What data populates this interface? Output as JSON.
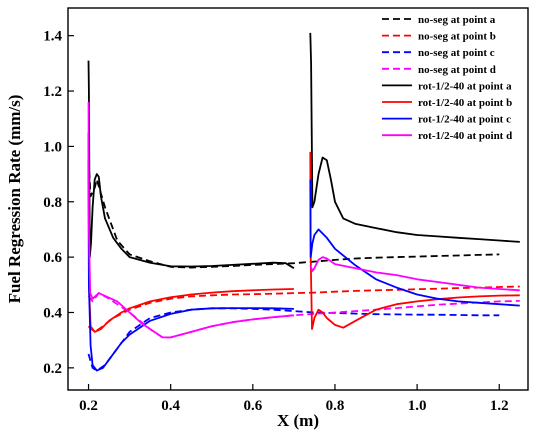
{
  "chart_data": {
    "type": "line",
    "xlabel": "X (m)",
    "ylabel": "Fuel Regression Rate (mm/s)",
    "xlim": [
      0.15,
      1.27
    ],
    "ylim": [
      0.12,
      1.5
    ],
    "xticks": [
      0.2,
      0.4,
      0.6,
      0.8,
      1.0,
      1.2
    ],
    "xtick_labels": [
      "0.2",
      "0.4",
      "0.6",
      "0.8",
      "1.0",
      "1.2"
    ],
    "yticks": [
      0.2,
      0.4,
      0.6,
      0.8,
      1.0,
      1.2,
      1.4
    ],
    "ytick_labels": [
      "0.2",
      "0.4",
      "0.6",
      "0.8",
      "1.0",
      "1.2",
      "1.4"
    ],
    "grid": false,
    "legend_position": "top-right",
    "series": [
      {
        "name": "no-seg at point a",
        "color": "#000000",
        "dash": "dashed",
        "segments": [
          [
            [
              0.2,
              0.95
            ],
            [
              0.205,
              0.82
            ],
            [
              0.215,
              0.85
            ],
            [
              0.22,
              0.88
            ],
            [
              0.24,
              0.78
            ],
            [
              0.27,
              0.66
            ],
            [
              0.3,
              0.61
            ],
            [
              0.35,
              0.585
            ],
            [
              0.4,
              0.565
            ],
            [
              0.45,
              0.562
            ],
            [
              0.5,
              0.565
            ],
            [
              0.55,
              0.568
            ],
            [
              0.6,
              0.572
            ],
            [
              0.65,
              0.575
            ],
            [
              0.7,
              0.578
            ],
            [
              0.75,
              0.584
            ],
            [
              0.8,
              0.59
            ],
            [
              0.85,
              0.595
            ],
            [
              0.9,
              0.598
            ],
            [
              0.95,
              0.6
            ],
            [
              1.0,
              0.602
            ],
            [
              1.05,
              0.604
            ],
            [
              1.1,
              0.606
            ],
            [
              1.15,
              0.608
            ],
            [
              1.2,
              0.61
            ]
          ]
        ]
      },
      {
        "name": "no-seg at point b",
        "color": "#ff0000",
        "dash": "dashed",
        "segments": [
          [
            [
              0.2,
              0.35
            ],
            [
              0.215,
              0.33
            ],
            [
              0.23,
              0.345
            ],
            [
              0.26,
              0.38
            ],
            [
              0.3,
              0.41
            ],
            [
              0.35,
              0.435
            ],
            [
              0.4,
              0.45
            ],
            [
              0.45,
              0.458
            ],
            [
              0.5,
              0.462
            ],
            [
              0.55,
              0.465
            ],
            [
              0.6,
              0.466
            ],
            [
              0.65,
              0.468
            ],
            [
              0.7,
              0.47
            ],
            [
              0.75,
              0.472
            ],
            [
              0.8,
              0.475
            ],
            [
              0.85,
              0.478
            ],
            [
              0.9,
              0.48
            ],
            [
              0.95,
              0.482
            ],
            [
              1.0,
              0.484
            ],
            [
              1.05,
              0.486
            ],
            [
              1.1,
              0.488
            ],
            [
              1.15,
              0.49
            ],
            [
              1.2,
              0.492
            ],
            [
              1.25,
              0.494
            ]
          ]
        ]
      },
      {
        "name": "no-seg at point c",
        "color": "#0000ff",
        "dash": "dashed",
        "segments": [
          [
            [
              0.2,
              0.25
            ],
            [
              0.21,
              0.2
            ],
            [
              0.22,
              0.19
            ],
            [
              0.24,
              0.21
            ],
            [
              0.27,
              0.27
            ],
            [
              0.3,
              0.33
            ],
            [
              0.35,
              0.38
            ],
            [
              0.4,
              0.4
            ],
            [
              0.45,
              0.41
            ],
            [
              0.5,
              0.415
            ],
            [
              0.55,
              0.415
            ],
            [
              0.6,
              0.413
            ],
            [
              0.65,
              0.41
            ],
            [
              0.7,
              0.405
            ],
            [
              0.75,
              0.4
            ],
            [
              0.8,
              0.398
            ],
            [
              0.85,
              0.396
            ],
            [
              0.9,
              0.394
            ],
            [
              0.95,
              0.393
            ],
            [
              1.0,
              0.392
            ],
            [
              1.05,
              0.392
            ],
            [
              1.1,
              0.391
            ],
            [
              1.15,
              0.39
            ],
            [
              1.2,
              0.39
            ]
          ]
        ]
      },
      {
        "name": "no-seg at point d",
        "color": "#ff00ff",
        "dash": "dashed",
        "segments": [
          [
            [
              0.2,
              0.46
            ],
            [
              0.21,
              0.44
            ],
            [
              0.225,
              0.47
            ],
            [
              0.25,
              0.45
            ],
            [
              0.3,
              0.4
            ],
            [
              0.35,
              0.34
            ],
            [
              0.38,
              0.31
            ],
            [
              0.4,
              0.31
            ],
            [
              0.45,
              0.33
            ],
            [
              0.5,
              0.35
            ],
            [
              0.55,
              0.365
            ],
            [
              0.6,
              0.375
            ],
            [
              0.65,
              0.383
            ],
            [
              0.7,
              0.39
            ],
            [
              0.75,
              0.395
            ],
            [
              0.8,
              0.4
            ],
            [
              0.85,
              0.405
            ],
            [
              0.9,
              0.41
            ],
            [
              0.95,
              0.416
            ],
            [
              1.0,
              0.422
            ],
            [
              1.05,
              0.428
            ],
            [
              1.1,
              0.432
            ],
            [
              1.15,
              0.436
            ],
            [
              1.2,
              0.44
            ],
            [
              1.25,
              0.442
            ]
          ]
        ]
      },
      {
        "name": "rot-1/2-40 at point a",
        "color": "#000000",
        "dash": "solid",
        "segments": [
          [
            [
              0.2,
              1.31
            ],
            [
              0.201,
              1.2
            ],
            [
              0.203,
              0.6
            ],
            [
              0.206,
              0.65
            ],
            [
              0.21,
              0.78
            ],
            [
              0.215,
              0.88
            ],
            [
              0.22,
              0.9
            ],
            [
              0.225,
              0.89
            ],
            [
              0.23,
              0.82
            ],
            [
              0.24,
              0.74
            ],
            [
              0.26,
              0.67
            ],
            [
              0.28,
              0.63
            ],
            [
              0.3,
              0.6
            ],
            [
              0.35,
              0.58
            ],
            [
              0.4,
              0.567
            ],
            [
              0.45,
              0.566
            ],
            [
              0.5,
              0.568
            ],
            [
              0.55,
              0.572
            ],
            [
              0.6,
              0.576
            ],
            [
              0.65,
              0.58
            ],
            [
              0.68,
              0.578
            ],
            [
              0.7,
              0.56
            ]
          ],
          [
            [
              0.74,
              1.41
            ],
            [
              0.742,
              1.3
            ],
            [
              0.745,
              0.78
            ],
            [
              0.75,
              0.8
            ],
            [
              0.76,
              0.9
            ],
            [
              0.77,
              0.96
            ],
            [
              0.78,
              0.95
            ],
            [
              0.79,
              0.88
            ],
            [
              0.8,
              0.8
            ],
            [
              0.82,
              0.74
            ],
            [
              0.85,
              0.72
            ],
            [
              0.9,
              0.705
            ],
            [
              0.95,
              0.69
            ],
            [
              1.0,
              0.68
            ],
            [
              1.05,
              0.675
            ],
            [
              1.1,
              0.67
            ],
            [
              1.15,
              0.665
            ],
            [
              1.2,
              0.66
            ],
            [
              1.25,
              0.655
            ]
          ]
        ]
      },
      {
        "name": "rot-1/2-40 at point b",
        "color": "#ff0000",
        "dash": "solid",
        "segments": [
          [
            [
              0.2,
              0.95
            ],
            [
              0.201,
              0.5
            ],
            [
              0.205,
              0.35
            ],
            [
              0.215,
              0.33
            ],
            [
              0.23,
              0.34
            ],
            [
              0.25,
              0.37
            ],
            [
              0.28,
              0.4
            ],
            [
              0.3,
              0.415
            ],
            [
              0.35,
              0.44
            ],
            [
              0.4,
              0.455
            ],
            [
              0.45,
              0.465
            ],
            [
              0.5,
              0.472
            ],
            [
              0.55,
              0.477
            ],
            [
              0.6,
              0.48
            ],
            [
              0.65,
              0.483
            ],
            [
              0.7,
              0.485
            ]
          ],
          [
            [
              0.74,
              0.98
            ],
            [
              0.741,
              0.6
            ],
            [
              0.744,
              0.34
            ],
            [
              0.75,
              0.38
            ],
            [
              0.76,
              0.41
            ],
            [
              0.77,
              0.4
            ],
            [
              0.78,
              0.38
            ],
            [
              0.8,
              0.355
            ],
            [
              0.82,
              0.345
            ],
            [
              0.85,
              0.37
            ],
            [
              0.9,
              0.41
            ],
            [
              0.95,
              0.43
            ],
            [
              1.0,
              0.44
            ],
            [
              1.05,
              0.448
            ],
            [
              1.1,
              0.454
            ],
            [
              1.15,
              0.458
            ],
            [
              1.2,
              0.461
            ],
            [
              1.25,
              0.462
            ]
          ]
        ]
      },
      {
        "name": "rot-1/2-40 at point c",
        "color": "#0000ff",
        "dash": "solid",
        "segments": [
          [
            [
              0.2,
              1.05
            ],
            [
              0.201,
              0.5
            ],
            [
              0.205,
              0.28
            ],
            [
              0.21,
              0.21
            ],
            [
              0.22,
              0.19
            ],
            [
              0.235,
              0.2
            ],
            [
              0.25,
              0.23
            ],
            [
              0.28,
              0.29
            ],
            [
              0.3,
              0.32
            ],
            [
              0.35,
              0.37
            ],
            [
              0.4,
              0.395
            ],
            [
              0.45,
              0.41
            ],
            [
              0.5,
              0.415
            ],
            [
              0.55,
              0.416
            ],
            [
              0.6,
              0.416
            ],
            [
              0.65,
              0.415
            ],
            [
              0.7,
              0.413
            ]
          ],
          [
            [
              0.74,
              0.88
            ],
            [
              0.741,
              0.6
            ],
            [
              0.745,
              0.65
            ],
            [
              0.75,
              0.68
            ],
            [
              0.76,
              0.7
            ],
            [
              0.78,
              0.67
            ],
            [
              0.8,
              0.63
            ],
            [
              0.85,
              0.57
            ],
            [
              0.9,
              0.52
            ],
            [
              0.95,
              0.49
            ],
            [
              1.0,
              0.465
            ],
            [
              1.05,
              0.45
            ],
            [
              1.1,
              0.44
            ],
            [
              1.15,
              0.435
            ],
            [
              1.2,
              0.43
            ],
            [
              1.25,
              0.425
            ]
          ]
        ]
      },
      {
        "name": "rot-1/2-40 at point d",
        "color": "#ff00ff",
        "dash": "solid",
        "segments": [
          [
            [
              0.2,
              1.16
            ],
            [
              0.201,
              0.7
            ],
            [
              0.204,
              0.47
            ],
            [
              0.21,
              0.45
            ],
            [
              0.225,
              0.47
            ],
            [
              0.24,
              0.46
            ],
            [
              0.27,
              0.44
            ],
            [
              0.3,
              0.4
            ],
            [
              0.33,
              0.36
            ],
            [
              0.36,
              0.33
            ],
            [
              0.38,
              0.31
            ],
            [
              0.4,
              0.31
            ],
            [
              0.45,
              0.33
            ],
            [
              0.5,
              0.35
            ],
            [
              0.55,
              0.365
            ],
            [
              0.6,
              0.375
            ],
            [
              0.65,
              0.383
            ],
            [
              0.7,
              0.39
            ]
          ],
          [
            [
              0.74,
              0.57
            ],
            [
              0.745,
              0.55
            ],
            [
              0.75,
              0.56
            ],
            [
              0.76,
              0.59
            ],
            [
              0.77,
              0.6
            ],
            [
              0.78,
              0.595
            ],
            [
              0.8,
              0.575
            ],
            [
              0.85,
              0.56
            ],
            [
              0.9,
              0.545
            ],
            [
              0.95,
              0.535
            ],
            [
              1.0,
              0.52
            ],
            [
              1.05,
              0.51
            ],
            [
              1.1,
              0.5
            ],
            [
              1.15,
              0.49
            ],
            [
              1.2,
              0.485
            ],
            [
              1.25,
              0.48
            ]
          ]
        ]
      }
    ]
  }
}
